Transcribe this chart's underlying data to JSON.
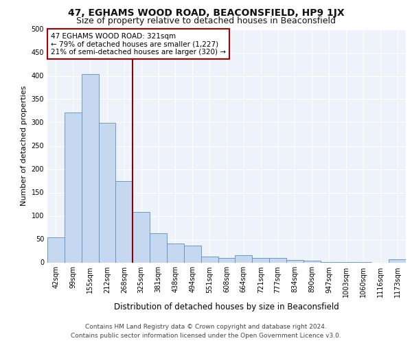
{
  "title": "47, EGHAMS WOOD ROAD, BEACONSFIELD, HP9 1JX",
  "subtitle": "Size of property relative to detached houses in Beaconsfield",
  "xlabel": "Distribution of detached houses by size in Beaconsfield",
  "ylabel": "Number of detached properties",
  "footer_line1": "Contains HM Land Registry data © Crown copyright and database right 2024.",
  "footer_line2": "Contains public sector information licensed under the Open Government Licence v3.0.",
  "bar_labels": [
    "42sqm",
    "99sqm",
    "155sqm",
    "212sqm",
    "268sqm",
    "325sqm",
    "381sqm",
    "438sqm",
    "494sqm",
    "551sqm",
    "608sqm",
    "664sqm",
    "721sqm",
    "777sqm",
    "834sqm",
    "890sqm",
    "947sqm",
    "1003sqm",
    "1060sqm",
    "1116sqm",
    "1173sqm"
  ],
  "bar_values": [
    53,
    322,
    404,
    299,
    175,
    108,
    63,
    40,
    36,
    12,
    10,
    15,
    10,
    9,
    5,
    3,
    1,
    1,
    1,
    0,
    6
  ],
  "bar_color": "#c5d8f0",
  "bar_edge_color": "#5a8fc2",
  "vline_color": "#8b0000",
  "vline_position": 4.5,
  "annotation_box_text": "47 EGHAMS WOOD ROAD: 321sqm\n← 79% of detached houses are smaller (1,227)\n21% of semi-detached houses are larger (320) →",
  "annotation_box_color": "#aa0000",
  "ylim": [
    0,
    500
  ],
  "yticks": [
    0,
    50,
    100,
    150,
    200,
    250,
    300,
    350,
    400,
    450,
    500
  ],
  "bg_color": "#eef2fa",
  "grid_color": "#ffffff",
  "fig_bg_color": "#ffffff",
  "title_fontsize": 10,
  "subtitle_fontsize": 9,
  "ylabel_fontsize": 8,
  "xlabel_fontsize": 8.5,
  "tick_fontsize": 7,
  "annot_fontsize": 7.5,
  "footer_fontsize": 6.5
}
